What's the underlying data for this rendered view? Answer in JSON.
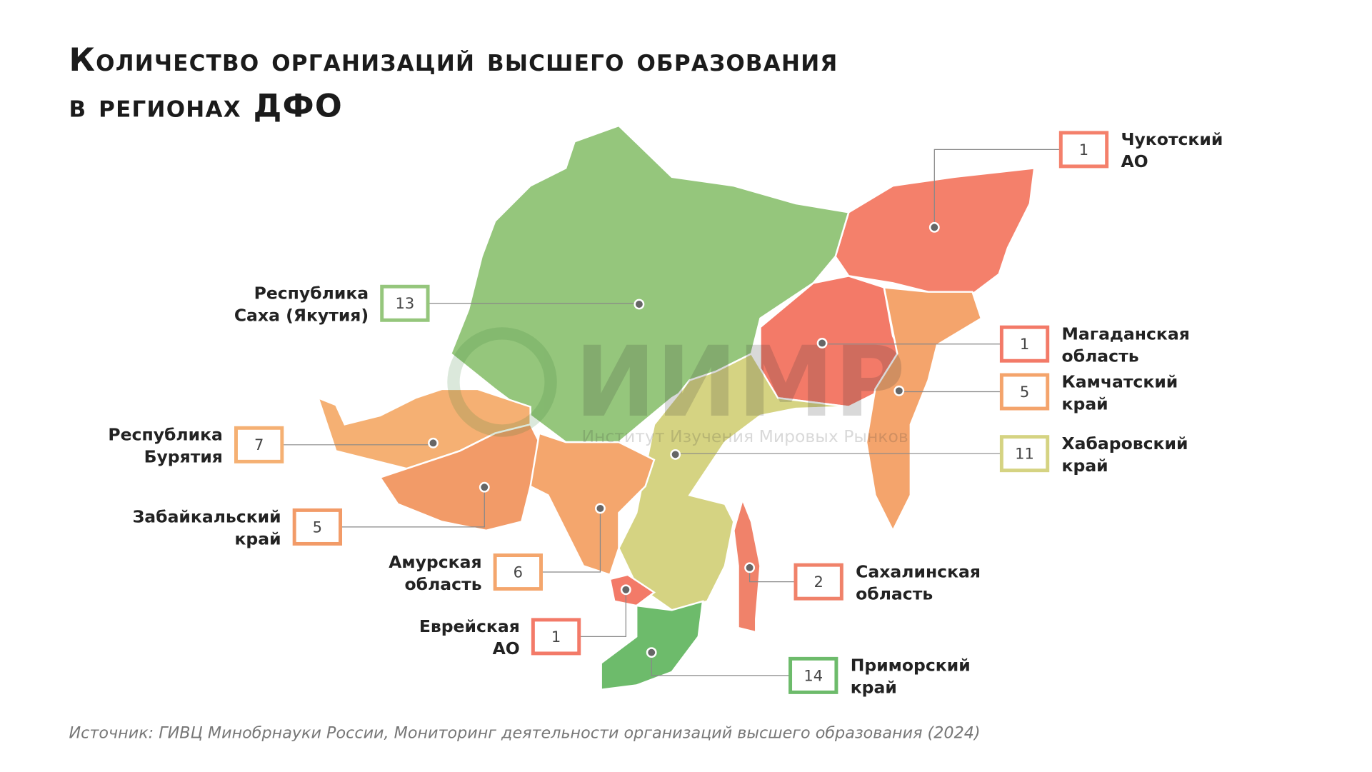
{
  "title_lines": [
    "Количество организаций высшего образования",
    "в регионах ДФО"
  ],
  "watermark": {
    "logo": "ИИМР",
    "caption": "Институт Изучения Мировых Рынков"
  },
  "source": "Источник: ГИВЦ Минобрнауки России, Мониторинг деятельности организаций высшего образования (2024)",
  "regions": [
    {
      "label": [
        "Чукотский",
        "АО"
      ],
      "value": 1,
      "color": "#f4806b"
    },
    {
      "label": [
        "Республика",
        "Саха (Якутия)"
      ],
      "value": 13,
      "color": "#95c67c"
    },
    {
      "label": [
        "Магаданская",
        "область"
      ],
      "value": 1,
      "color": "#f37a68"
    },
    {
      "label": [
        "Камчатский",
        "край"
      ],
      "value": 5,
      "color": "#f4a46c"
    },
    {
      "label": [
        "Хабаровский",
        "край"
      ],
      "value": 11,
      "color": "#d5d382"
    },
    {
      "label": [
        "Республика",
        "Бурятия"
      ],
      "value": 7,
      "color": "#f5b073"
    },
    {
      "label": [
        "Забайкальский",
        "край"
      ],
      "value": 5,
      "color": "#f29b68"
    },
    {
      "label": [
        "Амурская",
        "область"
      ],
      "value": 6,
      "color": "#f4a66d"
    },
    {
      "label": [
        "Еврейская",
        "АО"
      ],
      "value": 1,
      "color": "#f37a68"
    },
    {
      "label": [
        "Сахалинская",
        "область"
      ],
      "value": 2,
      "color": "#f0826a"
    },
    {
      "label": [
        "Приморский",
        "край"
      ],
      "value": 14,
      "color": "#6dbb6b"
    }
  ]
}
